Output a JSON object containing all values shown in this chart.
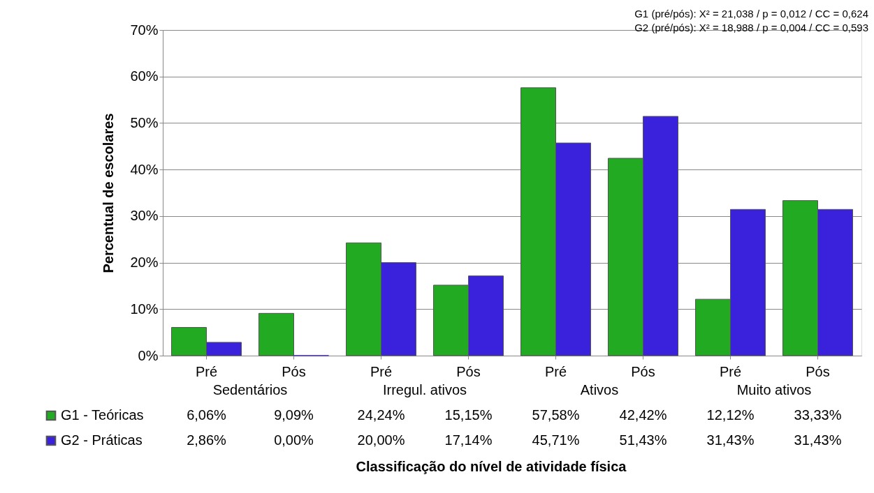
{
  "chart_data": {
    "type": "bar",
    "ylabel": "Percentual de escolares",
    "categories": [
      "Pré",
      "Pós",
      "Pré",
      "Pós",
      "Pré",
      "Pós",
      "Pré",
      "Pós"
    ],
    "series": [
      {
        "name": "G1 - Teóricas",
        "color": "#22aa22",
        "values": [
          6.06,
          9.09,
          24.24,
          15.15,
          57.58,
          42.42,
          12.12,
          33.33
        ],
        "value_labels": [
          "6,06%",
          "9,09%",
          "24,24%",
          "15,15%",
          "57,58%",
          "42,42%",
          "12,12%",
          "33,33%"
        ]
      },
      {
        "name": "G2 - Práticas",
        "color": "#3a22dd",
        "values": [
          2.86,
          0.0,
          20.0,
          17.14,
          45.71,
          51.43,
          31.43,
          31.43
        ],
        "value_labels": [
          "2,86%",
          "0,00%",
          "20,00%",
          "17,14%",
          "45,71%",
          "51,43%",
          "31,43%",
          "31,43%"
        ]
      }
    ],
    "ylim": [
      0,
      70
    ],
    "yticks": [
      {
        "value": 0,
        "label": "0%"
      },
      {
        "value": 10,
        "label": "10%"
      },
      {
        "value": 20,
        "label": "20%"
      },
      {
        "value": 30,
        "label": "30%"
      },
      {
        "value": 40,
        "label": "40%"
      },
      {
        "value": 50,
        "label": "50%"
      },
      {
        "value": 60,
        "label": "60%"
      },
      {
        "value": 70,
        "label": "70%"
      }
    ],
    "grid": "y",
    "legend": "bottom",
    "annotations": [
      "G1 (pré/pós): X² = 21,038 / p = 0,012 / CC = 0,624",
      "G2 (pré/pós): X² = 18,988 / p = 0,004 / CC = 0,593",
      "Sedentários",
      "Irregul. ativos",
      "Ativos",
      "Muito ativos",
      "Classificação do nível de atividade física"
    ]
  }
}
